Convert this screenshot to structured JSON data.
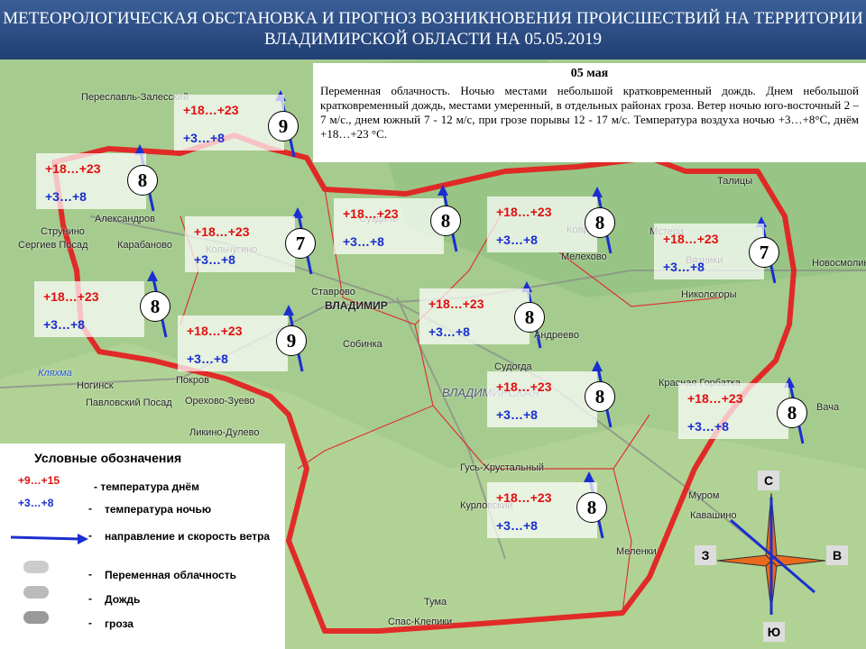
{
  "header": {
    "title": "МЕТЕОРОЛОГИЧЕСКАЯ ОБСТАНОВКА И ПРОГНОЗ ВОЗНИКНОВЕНИЯ ПРОИСШЕСТВИЙ НА ТЕРРИТОРИИ",
    "subtitle": "ВЛАДИМИРСКОЙ ОБЛАСТИ НА 05.05.2019"
  },
  "forecast": {
    "date": "05 мая",
    "text": "Переменная облачность. Ночью местами небольшой кратковременный дождь. Днем небольшой кратковременный дождь, местами умеренный, в отдельных районах гроза. Ветер ночью юго-восточный 2 – 7 м/с., днем южный 7 - 12 м/с, при грозе порывы 12 - 17 м/с. Температура воздуха ночью +3…+8°С, днём +18…+23 °С."
  },
  "stations": [
    {
      "day": "+18…+23",
      "night": "+3…+8",
      "wind": "9"
    },
    {
      "day": "+18…+23",
      "night": "+3…+8",
      "wind": "8"
    },
    {
      "day": "+18…+23",
      "night": "+3…+8",
      "wind": "7"
    },
    {
      "day": "+18…+23",
      "night": "+3…+8",
      "wind": "8"
    },
    {
      "day": "+18…+23",
      "night": "+3…+8",
      "wind": "8"
    },
    {
      "day": "+18…+23",
      "night": "+3…+8",
      "wind": "7"
    },
    {
      "day": "+18…+23",
      "night": "+3…+8",
      "wind": "8"
    },
    {
      "day": "+18…+23",
      "night": "+3…+8",
      "wind": "9"
    },
    {
      "day": "+18…+23",
      "night": "+3…+8",
      "wind": "8"
    },
    {
      "day": "+18…+23",
      "night": "+3…+8",
      "wind": "8"
    },
    {
      "day": "+18…+23",
      "night": "+3…+8",
      "wind": "8"
    },
    {
      "day": "+18…+23",
      "night": "+3…+8",
      "wind": "8"
    }
  ],
  "towns": [
    "Переславль-Залесский",
    "Александров",
    "Струнино",
    "Сергиев Посад",
    "Карабаново",
    "Кольчугино",
    "Суздаль",
    "Ставрово",
    "ВЛАДИМИР",
    "Собинка",
    "Ковров",
    "Мелехово",
    "Мстера",
    "Вязники",
    "Никологоры",
    "Талицы",
    "Новосмолинск",
    "Покров",
    "Орехово-Зуево",
    "Павловский Посад",
    "Ногинск",
    "Ликино-Дулево",
    "Судогда",
    "Андреево",
    "Красная Горбатка",
    "Вача",
    "Гусь-Хрустальный",
    "Курловский",
    "Муром",
    "Кавашино",
    "Меленки",
    "Тума",
    "Спас-Клепики",
    "Кляхма",
    "ВЛАДИМИРСКАЯ"
  ],
  "legend": {
    "title": "Условные  обозначения",
    "items": [
      {
        "sample": "+9…+15",
        "text": "- температура днём"
      },
      {
        "sample": "+3…+8",
        "marker": "-",
        "text": "температура ночью"
      },
      {
        "marker": "-",
        "text": "направление и скорость ветра"
      },
      {
        "marker": "-",
        "text": "Переменная облачность"
      },
      {
        "marker": "-",
        "text": "Дождь"
      },
      {
        "marker": "-",
        "text": "гроза"
      }
    ]
  },
  "compass": {
    "north": "С",
    "south": "Ю",
    "west": "З",
    "east": "В"
  }
}
